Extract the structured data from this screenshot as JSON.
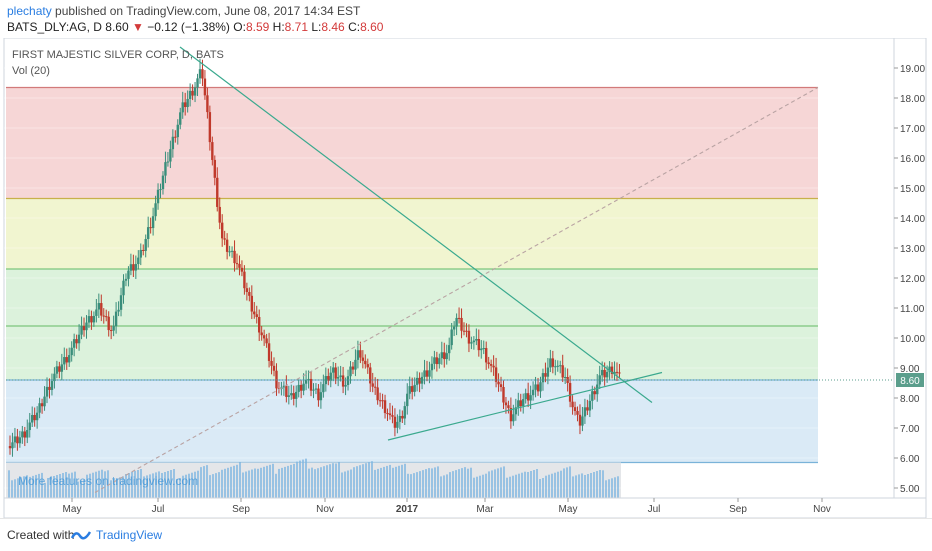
{
  "header": {
    "author": "plechaty",
    "published_text": "published on TradingView.com, June 08, 2017 14:34 EST",
    "ticker": "BATS_DLY:AG, D",
    "last": "8.60",
    "change_arrow": "▼",
    "change": "−0.12 (−1.38%)",
    "o_label": "O:",
    "o_val": "8.59",
    "h_label": "H:",
    "h_val": "8.71",
    "l_label": "L:",
    "l_val": "8.46",
    "c_label": "C:",
    "c_val": "8.60"
  },
  "chart_labels": {
    "title": "FIRST MAJESTIC SILVER CORP, D, BATS",
    "volume_label": "Vol (20)",
    "watermark": "More features on tradingview.com",
    "last_price_tag": "8.60"
  },
  "footer": {
    "created_with": "Created with",
    "brand": "TradingView"
  },
  "colors": {
    "up": "#3a8e7b",
    "down": "#c0392b",
    "trendline": "#3aa98e",
    "fib_red": "#f4cfcf",
    "fib_yellow": "#eef3c8",
    "fib_green": "#d6f0d6",
    "fib_blue": "#d4e6f4",
    "volume": "#7fb6e0"
  },
  "chart_data": {
    "type": "candlestick",
    "title": "FIRST MAJESTIC SILVER CORP, D, BATS",
    "y_ticks": [
      "5.00",
      "6.00",
      "7.00",
      "8.00",
      "9.00",
      "10.00",
      "11.00",
      "12.00",
      "13.00",
      "14.00",
      "15.00",
      "16.00",
      "17.00",
      "18.00",
      "19.00"
    ],
    "ylim": [
      4.8,
      19.8
    ],
    "x_ticks": [
      "May",
      "Jul",
      "Sep",
      "Nov",
      "2017",
      "Mar",
      "May",
      "Jul",
      "Sep",
      "Nov"
    ],
    "fib_levels": [
      18.35,
      14.65,
      12.3,
      10.4,
      8.6,
      5.85
    ],
    "price_path": [
      [
        0,
        6.4
      ],
      [
        2,
        6.8
      ],
      [
        4,
        7.5
      ],
      [
        6,
        8.6
      ],
      [
        9,
        9.6
      ],
      [
        11,
        10.5
      ],
      [
        13,
        11.0
      ],
      [
        15,
        10.2
      ],
      [
        17,
        12.2
      ],
      [
        19,
        12.7
      ],
      [
        21,
        14.2
      ],
      [
        23,
        16.0
      ],
      [
        25,
        17.6
      ],
      [
        27,
        18.4
      ],
      [
        28,
        18.9
      ],
      [
        29,
        17.0
      ],
      [
        30,
        15.0
      ],
      [
        31,
        13.2
      ],
      [
        33,
        12.6
      ],
      [
        35,
        11.2
      ],
      [
        37,
        10.0
      ],
      [
        39,
        8.4
      ],
      [
        41,
        8.0
      ],
      [
        43,
        8.6
      ],
      [
        45,
        8.1
      ],
      [
        47,
        8.9
      ],
      [
        49,
        8.5
      ],
      [
        51,
        9.6
      ],
      [
        53,
        8.3
      ],
      [
        55,
        7.6
      ],
      [
        56,
        7.1
      ],
      [
        57,
        7.3
      ],
      [
        58,
        8.1
      ],
      [
        60,
        8.7
      ],
      [
        62,
        9.2
      ],
      [
        64,
        9.6
      ],
      [
        65,
        10.7
      ],
      [
        67,
        10.0
      ],
      [
        69,
        9.6
      ],
      [
        71,
        8.6
      ],
      [
        73,
        7.4
      ],
      [
        75,
        8.0
      ],
      [
        77,
        8.3
      ],
      [
        79,
        9.3
      ],
      [
        81,
        8.7
      ],
      [
        82,
        7.8
      ],
      [
        83,
        7.1
      ],
      [
        84,
        7.6
      ],
      [
        86,
        8.7
      ],
      [
        88,
        9.0
      ],
      [
        89,
        8.6
      ]
    ],
    "volume_levels": [
      0.45,
      0.35,
      0.5,
      0.4,
      0.55,
      0.45,
      0.5,
      0.6,
      0.5,
      0.55,
      0.65,
      0.7,
      0.75,
      0.7,
      0.85,
      0.9,
      0.8,
      0.75,
      0.8,
      0.85,
      0.7,
      0.65,
      0.6,
      0.65,
      0.55,
      0.6,
      0.55,
      0.5,
      0.55,
      0.6,
      0.5,
      0.45
    ]
  }
}
